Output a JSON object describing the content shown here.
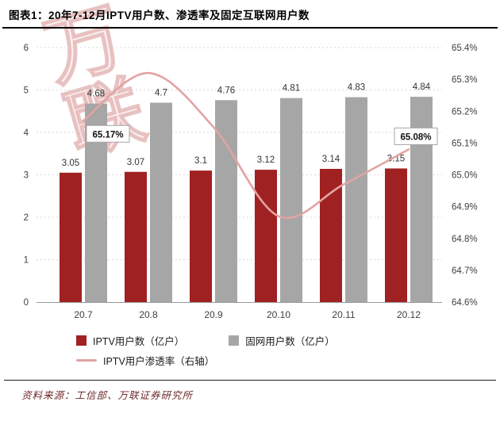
{
  "header": {
    "title": "图表1：20年7-12月IPTV用户数、渗透率及固定互联网用户数"
  },
  "watermark": {
    "text": "万联"
  },
  "chart_data": {
    "type": "bar+line",
    "categories": [
      "20.7",
      "20.8",
      "20.9",
      "20.10",
      "20.11",
      "20.12"
    ],
    "series": [
      {
        "name": "IPTV用户数（亿户）",
        "type": "bar",
        "axis": "left",
        "color": "#A02121",
        "values": [
          3.05,
          3.07,
          3.1,
          3.12,
          3.14,
          3.15
        ],
        "labels": [
          "3.05",
          "3.07",
          "3.1",
          "3.12",
          "3.14",
          "3.15"
        ]
      },
      {
        "name": "固网用户数（亿户）",
        "type": "bar",
        "axis": "left",
        "color": "#A6A6A6",
        "values": [
          4.68,
          4.7,
          4.76,
          4.81,
          4.83,
          4.84
        ],
        "labels": [
          "4.68",
          "4.7",
          "4.76",
          "4.81",
          "4.83",
          "4.84"
        ]
      },
      {
        "name": "IPTV用户渗透率（右轴）",
        "type": "line",
        "axis": "right",
        "color": "#E2A3A3",
        "values": [
          65.17,
          65.32,
          65.15,
          64.87,
          64.97,
          65.08
        ]
      }
    ],
    "line_callouts": [
      {
        "index": 0,
        "text": "65.17%"
      },
      {
        "index": 5,
        "text": "65.08%"
      }
    ],
    "left_axis": {
      "min": 0,
      "max": 6,
      "ticks": [
        "0",
        "1",
        "2",
        "3",
        "4",
        "5",
        "6"
      ]
    },
    "right_axis": {
      "min": 64.6,
      "max": 65.4,
      "ticks": [
        "64.6%",
        "64.7%",
        "64.8%",
        "64.9%",
        "65.0%",
        "65.1%",
        "65.2%",
        "65.3%",
        "65.4%"
      ]
    },
    "grid": "dashed-horizontal",
    "legend_position": "bottom"
  },
  "legend": {
    "items": [
      {
        "marker": "square",
        "color": "#A02121",
        "label": "IPTV用户数（亿户）"
      },
      {
        "marker": "square",
        "color": "#A6A6A6",
        "label": "固网用户数（亿户）"
      },
      {
        "marker": "line",
        "color": "#E2A3A3",
        "label": "IPTV用户渗透率（右轴）"
      }
    ]
  },
  "footer": {
    "source": "资料来源：工信部、万联证券研究所"
  },
  "colors": {
    "iptv_bar": "#A02121",
    "fixed_bar": "#A6A6A6",
    "penetration_line": "#E2A3A3",
    "grid": "#D9D9D9",
    "axis_text": "#404040"
  }
}
